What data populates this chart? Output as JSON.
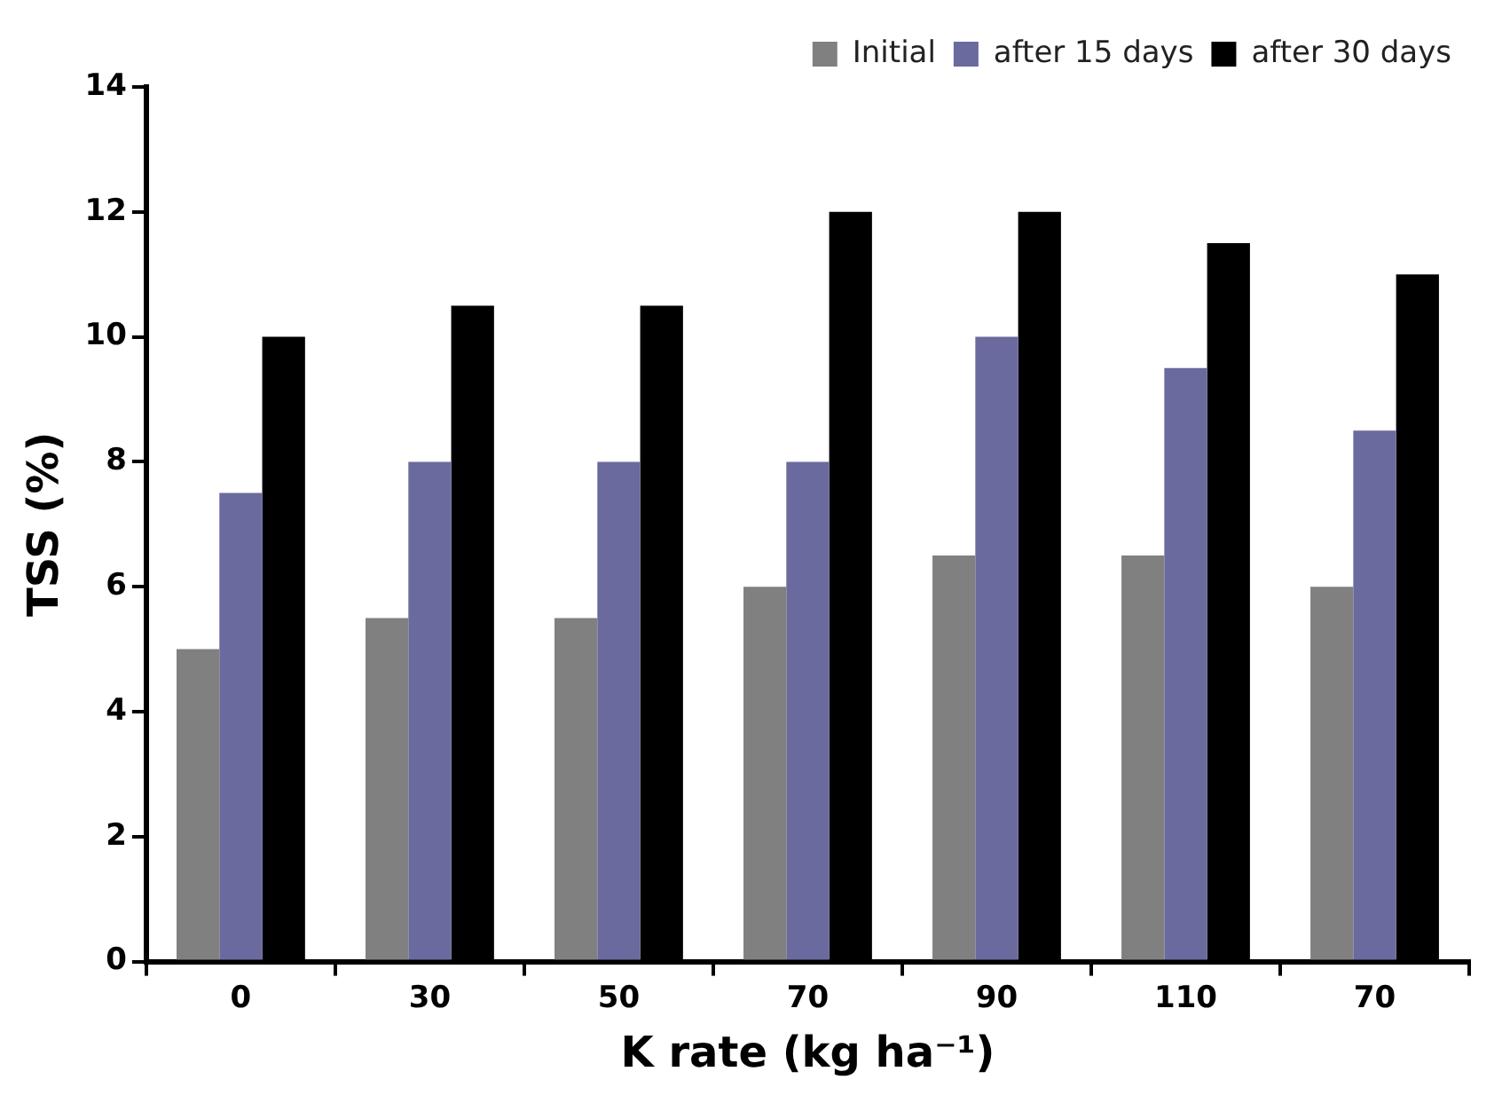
{
  "chart_data": {
    "type": "bar",
    "xlabel": "K rate (kg ha⁻¹)",
    "ylabel": "TSS (%)",
    "categories": [
      "0",
      "30",
      "50",
      "70",
      "90",
      "110",
      "70"
    ],
    "series": [
      {
        "name": "Initial",
        "color": "#808080",
        "values": [
          5,
          5.5,
          5.5,
          6,
          6.5,
          6.5,
          6
        ]
      },
      {
        "name": "after 15 days",
        "color": "#6a6a9e",
        "values": [
          7.5,
          8,
          8,
          8,
          10,
          9.5,
          8.5
        ]
      },
      {
        "name": "after 30 days",
        "color": "#000000",
        "values": [
          10,
          10.5,
          10.5,
          12,
          12,
          11.5,
          11
        ]
      }
    ],
    "ylim": [
      0,
      14
    ],
    "yticks": [
      0,
      2,
      4,
      6,
      8,
      10,
      12,
      14
    ],
    "grid": false,
    "legend": "top right"
  }
}
